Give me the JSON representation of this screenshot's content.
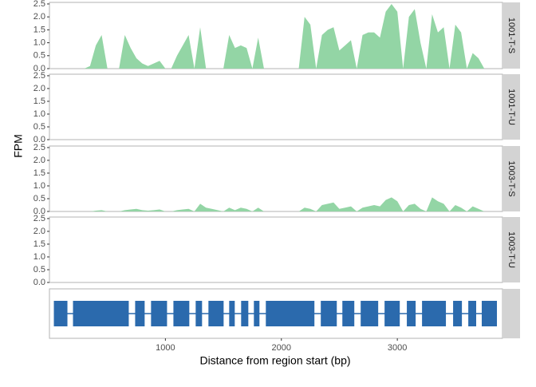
{
  "chart_data": [
    {
      "type": "area",
      "ylabel": "FPM",
      "x": [
        0,
        50,
        100,
        150,
        200,
        250,
        300,
        350,
        400,
        450,
        500,
        550,
        600,
        650,
        700,
        750,
        800,
        850,
        900,
        950,
        1000,
        1050,
        1100,
        1150,
        1200,
        1250,
        1300,
        1350,
        1400,
        1450,
        1500,
        1550,
        1600,
        1650,
        1700,
        1750,
        1800,
        1850,
        1900,
        1950,
        2000,
        2050,
        2100,
        2150,
        2200,
        2250,
        2300,
        2350,
        2400,
        2450,
        2500,
        2550,
        2600,
        2650,
        2700,
        2750,
        2800,
        2850,
        2900,
        2950,
        3000,
        3050,
        3100,
        3150,
        3200,
        3250,
        3300,
        3350,
        3400,
        3450,
        3500,
        3550,
        3600,
        3650,
        3700,
        3750,
        3800,
        3850
      ],
      "series": [
        {
          "name": "1001-T-S",
          "color": "#93d5a5",
          "values": [
            0,
            0,
            0,
            0,
            0,
            0,
            0,
            0.1,
            0.9,
            1.3,
            0,
            0,
            0,
            1.3,
            0.8,
            0.4,
            0.2,
            0.1,
            0.2,
            0.3,
            0,
            0,
            0.5,
            0.9,
            1.3,
            0,
            1.6,
            0,
            0,
            0,
            0,
            1.3,
            0.8,
            0.9,
            0.8,
            0,
            1.2,
            0,
            0,
            0,
            0,
            0,
            0,
            0,
            2.0,
            1.7,
            0,
            1.3,
            1.5,
            1.6,
            0.7,
            0.9,
            1.1,
            0,
            1.3,
            1.4,
            1.4,
            1.2,
            2.2,
            2.5,
            2.2,
            0,
            2.0,
            2.3,
            1.0,
            0,
            2.1,
            1.4,
            1.6,
            0,
            1.7,
            1.4,
            0,
            0.6,
            0.4,
            0,
            0,
            0
          ]
        },
        {
          "name": "1001-T-U",
          "color": "#93d5a5",
          "values": [
            0,
            0,
            0,
            0,
            0,
            0,
            0,
            0,
            0,
            0,
            0,
            0,
            0,
            0,
            0,
            0,
            0,
            0,
            0,
            0,
            0,
            0,
            0,
            0,
            0,
            0,
            0,
            0,
            0,
            0,
            0,
            0,
            0,
            0,
            0,
            0,
            0,
            0,
            0,
            0,
            0,
            0,
            0,
            0,
            0,
            0,
            0,
            0,
            0,
            0,
            0,
            0,
            0,
            0,
            0,
            0,
            0,
            0,
            0,
            0,
            0,
            0,
            0,
            0,
            0,
            0,
            0,
            0,
            0,
            0,
            0,
            0,
            0,
            0,
            0,
            0,
            0,
            0
          ]
        },
        {
          "name": "1003-T-S",
          "color": "#93d5a5",
          "values": [
            0,
            0,
            0,
            0,
            0,
            0,
            0,
            0,
            0.03,
            0.05,
            0,
            0,
            0,
            0.05,
            0.08,
            0.1,
            0.05,
            0.03,
            0.05,
            0.08,
            0,
            0,
            0.05,
            0.08,
            0.1,
            0,
            0.3,
            0.15,
            0.1,
            0.05,
            0,
            0.15,
            0.05,
            0.15,
            0.1,
            0,
            0.15,
            0,
            0,
            0,
            0,
            0,
            0,
            0,
            0.15,
            0.1,
            0,
            0.25,
            0.3,
            0.35,
            0.1,
            0.15,
            0.2,
            0,
            0.15,
            0.2,
            0.25,
            0.2,
            0.45,
            0.55,
            0.4,
            0,
            0.25,
            0.3,
            0.1,
            0,
            0.55,
            0.4,
            0.3,
            0,
            0.25,
            0.15,
            0,
            0.2,
            0.1,
            0,
            0,
            0
          ]
        },
        {
          "name": "1003-T-U",
          "color": "#93d5a5",
          "values": [
            0,
            0,
            0,
            0,
            0,
            0,
            0,
            0,
            0,
            0,
            0,
            0,
            0,
            0,
            0,
            0,
            0,
            0,
            0,
            0,
            0,
            0,
            0,
            0,
            0,
            0,
            0,
            0,
            0,
            0,
            0,
            0,
            0,
            0,
            0,
            0,
            0,
            0,
            0,
            0,
            0,
            0,
            0,
            0,
            0,
            0,
            0,
            0,
            0,
            0,
            0,
            0,
            0,
            0,
            0,
            0,
            0,
            0,
            0,
            0,
            0,
            0,
            0,
            0,
            0,
            0,
            0,
            0,
            0,
            0,
            0,
            0,
            0,
            0,
            0,
            0,
            0,
            0
          ]
        }
      ],
      "xlim": [
        0,
        3907
      ],
      "ylim": [
        0,
        2.56
      ],
      "yticks": [
        {
          "value": 0,
          "label": "0.0"
        },
        0.5,
        {
          "value": 1,
          "label": "1.0"
        },
        1.5,
        {
          "value": 2,
          "label": "2.0"
        },
        2.5
      ]
    },
    {
      "type": "gene",
      "color": "#2b6aad",
      "exons": [
        [
          38,
          155
        ],
        [
          203,
          684
        ],
        [
          739,
          821
        ],
        [
          876,
          1014
        ],
        [
          1069,
          1206
        ],
        [
          1261,
          1316
        ],
        [
          1371,
          1502
        ],
        [
          1550,
          1598
        ],
        [
          1653,
          1715
        ],
        [
          1763,
          1811
        ],
        [
          1866,
          2285
        ],
        [
          2340,
          2478
        ],
        [
          2526,
          2629
        ],
        [
          2684,
          2835
        ],
        [
          2890,
          3021
        ],
        [
          3082,
          3158
        ],
        [
          3213,
          3419
        ],
        [
          3481,
          3557
        ],
        [
          3612,
          3680
        ],
        [
          3728,
          3859
        ]
      ],
      "xlim": [
        0,
        3907
      ],
      "xticks": [
        1000,
        2000,
        3000
      ],
      "xlabel": "Distance from region start (bp)"
    }
  ]
}
